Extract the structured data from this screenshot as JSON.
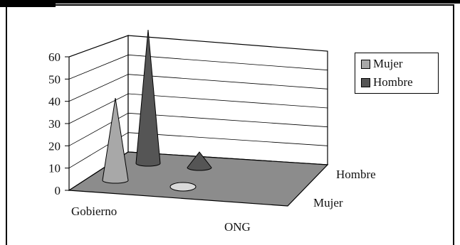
{
  "chart_data": {
    "type": "bar",
    "subtype": "3d-cone",
    "categories": [
      "Gobierno",
      "ONG"
    ],
    "series": [
      {
        "name": "Mujer",
        "values": [
          37,
          1
        ],
        "color": "#a8a8a8"
      },
      {
        "name": "Hombre",
        "values": [
          60,
          7
        ],
        "color": "#555555"
      }
    ],
    "depth_labels": [
      "Hombre",
      "Mujer"
    ],
    "y_ticks": [
      "0",
      "10",
      "20",
      "30",
      "40",
      "50",
      "60"
    ],
    "ylim": [
      0,
      60
    ],
    "grid": true,
    "legend_position": "right",
    "floor_color": "#8c8c8c"
  }
}
